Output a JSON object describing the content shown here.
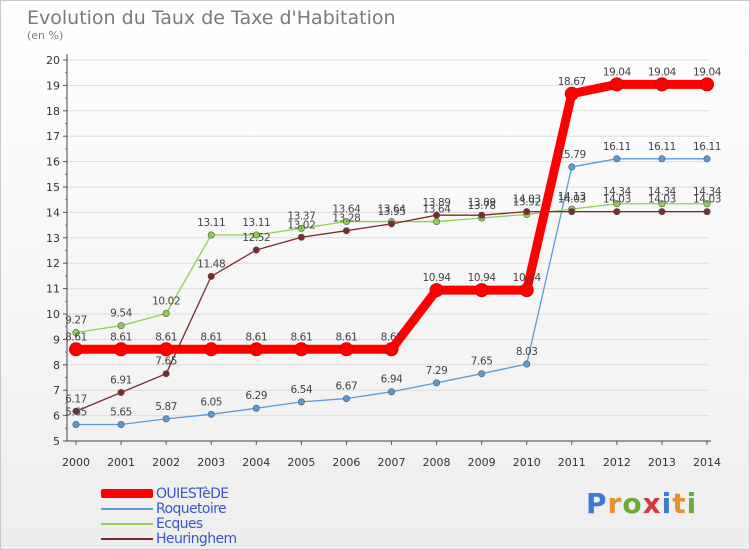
{
  "header": {
    "title": "Evolution du Taux de Taxe d'Habitation",
    "unit": "(en %)"
  },
  "logo": {
    "letters": [
      "P",
      "r",
      "o",
      "x",
      "i",
      "t",
      "i"
    ],
    "colors": [
      "#3a7bd5",
      "#e8902b",
      "#6aab3a",
      "#d23b3b",
      "#3a7bd5",
      "#e8902b",
      "#6aab3a"
    ]
  },
  "chart_data": {
    "type": "line",
    "x": [
      "2000",
      "2001",
      "2002",
      "2003",
      "2004",
      "2005",
      "2006",
      "2007",
      "2008",
      "2009",
      "2010",
      "2011",
      "2012",
      "2013",
      "2014"
    ],
    "ylim": [
      5,
      20
    ],
    "yticks": [
      "5",
      "6",
      "7",
      "8",
      "9",
      "10",
      "11",
      "12",
      "13",
      "14",
      "15",
      "16",
      "17",
      "18",
      "19",
      "20"
    ],
    "grid": true,
    "legend_position": "bottom-left",
    "series": [
      {
        "name": "OUIESTèDE",
        "color": "#ff0000",
        "values": [
          8.61,
          8.61,
          8.61,
          8.61,
          8.61,
          8.61,
          8.61,
          8.61,
          10.94,
          10.94,
          10.94,
          18.67,
          19.04,
          19.04,
          19.04
        ],
        "labels": [
          "8.61",
          "8.61",
          "8.61",
          "8.61",
          "8.61",
          "8.61",
          "8.61",
          "8.61",
          "10.94",
          "10.94",
          "10.94",
          "18.67",
          "19.04",
          "19.04",
          "19.04"
        ]
      },
      {
        "name": "Roquetoire",
        "color": "#5b9bd5",
        "values": [
          5.65,
          5.65,
          5.87,
          6.05,
          6.29,
          6.54,
          6.67,
          6.94,
          7.29,
          7.65,
          8.03,
          15.79,
          16.11,
          16.11,
          16.11
        ],
        "labels": [
          "5.65",
          "5.65",
          "5.87",
          "6.05",
          "6.29",
          "6.54",
          "6.67",
          "6.94",
          "7.29",
          "7.65",
          "8.03",
          "15.79",
          "16.11",
          "16.11",
          "16.11"
        ]
      },
      {
        "name": "Ecques",
        "color": "#8fd14f",
        "values": [
          9.27,
          9.54,
          10.02,
          13.11,
          13.11,
          13.37,
          13.64,
          13.64,
          13.64,
          13.78,
          13.92,
          14.13,
          14.34,
          14.34,
          14.34
        ],
        "labels": [
          "9.27",
          "9.54",
          "10.02",
          "13.11",
          "13.11",
          "13.37",
          "13.64",
          "13.64",
          "13.64",
          "13.78",
          "13.92",
          "14.13",
          "14.34",
          "14.34",
          "14.34"
        ]
      },
      {
        "name": "Heuringhem",
        "color": "#7b2b2b",
        "values": [
          6.17,
          6.91,
          7.65,
          11.48,
          12.52,
          13.02,
          13.28,
          13.55,
          13.89,
          13.89,
          14.03,
          14.03,
          14.03,
          14.03,
          14.03
        ],
        "labels": [
          "6.17",
          "6.91",
          "7.65",
          "11.48",
          "12.52",
          "13.02",
          "13.28",
          "13.55",
          "13.89",
          "13.89",
          "14.03",
          "14.03",
          "14.03",
          "14.03",
          "14.03"
        ]
      }
    ]
  }
}
